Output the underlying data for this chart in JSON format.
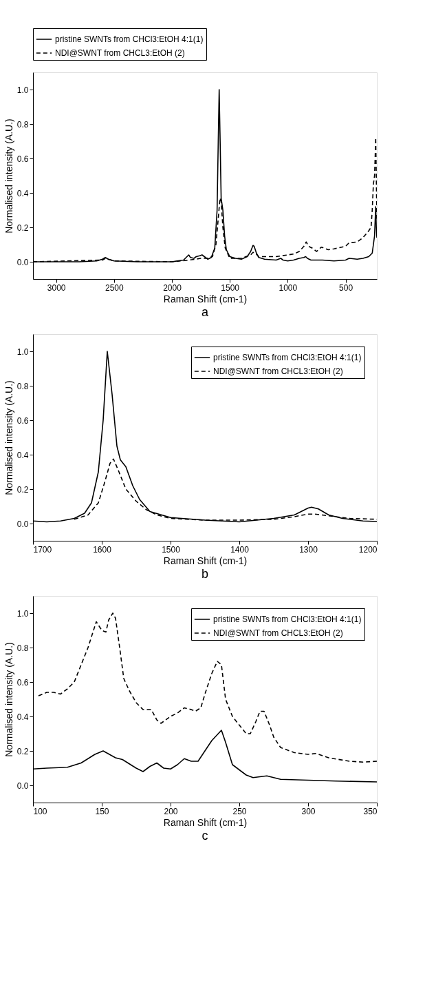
{
  "chart_data": [
    {
      "type": "line",
      "xlabel": "Raman Shift (cm-1)",
      "ylabel": "Normalised intensity (A.U.)",
      "annotations": [
        "a"
      ],
      "legend": "top",
      "grid": false,
      "xlim": [
        3200,
        230
      ],
      "xticks": [
        3000,
        2500,
        2000,
        1500,
        1000,
        500
      ],
      "ylim": [
        -0.1,
        1.1
      ],
      "yticks": [
        {
          "value": 0,
          "label": "0.0"
        },
        {
          "value": 0.2,
          "label": "0.2"
        },
        {
          "value": 0.4,
          "label": "0.4"
        },
        {
          "value": 0.6,
          "label": "0.6"
        },
        {
          "value": 0.8,
          "label": "0.8"
        },
        {
          "value": 1,
          "label": "1.0"
        }
      ],
      "series": [
        {
          "name": "pristine SWNTs from CHCl3:EtOH 4:1(1)",
          "color": "#000000",
          "line_style": "solid",
          "x": [
            3200,
            3000,
            2800,
            2650,
            2600,
            2575,
            2550,
            2500,
            2300,
            2000,
            1900,
            1870,
            1855,
            1840,
            1810,
            1790,
            1760,
            1740,
            1720,
            1690,
            1660,
            1630,
            1610,
            1600,
            1592,
            1585,
            1575,
            1560,
            1545,
            1530,
            1500,
            1450,
            1400,
            1350,
            1320,
            1300,
            1290,
            1270,
            1250,
            1200,
            1100,
            1060,
            1040,
            1000,
            950,
            900,
            860,
            845,
            830,
            800,
            700,
            600,
            500,
            470,
            400,
            350,
            300,
            270,
            250,
            240,
            235,
            230
          ],
          "values": [
            0.0,
            0.0,
            0.0,
            0.005,
            0.015,
            0.025,
            0.015,
            0.005,
            0.0,
            0.0,
            0.01,
            0.03,
            0.04,
            0.025,
            0.02,
            0.03,
            0.035,
            0.04,
            0.03,
            0.015,
            0.025,
            0.08,
            0.3,
            0.7,
            1.0,
            0.75,
            0.37,
            0.3,
            0.15,
            0.07,
            0.03,
            0.02,
            0.015,
            0.03,
            0.06,
            0.095,
            0.09,
            0.05,
            0.025,
            0.015,
            0.01,
            0.02,
            0.01,
            0.005,
            0.01,
            0.02,
            0.025,
            0.03,
            0.02,
            0.01,
            0.01,
            0.005,
            0.01,
            0.02,
            0.015,
            0.02,
            0.03,
            0.05,
            0.15,
            0.32,
            0.2,
            0.14
          ]
        },
        {
          "name": "NDI@SWNT from CHCL3:EtOH (2)",
          "color": "#000000",
          "line_style": "dashed",
          "x": [
            3200,
            2600,
            2575,
            2500,
            2000,
            1850,
            1750,
            1700,
            1650,
            1620,
            1600,
            1585,
            1575,
            1560,
            1540,
            1500,
            1400,
            1320,
            1300,
            1280,
            1250,
            1100,
            1000,
            950,
            900,
            860,
            840,
            820,
            790,
            750,
            710,
            690,
            650,
            600,
            500,
            470,
            400,
            350,
            300,
            280,
            270,
            260,
            250,
            245,
            240,
            235,
            232,
            230
          ],
          "values": [
            0.0,
            0.01,
            0.02,
            0.005,
            0.0,
            0.01,
            0.02,
            0.02,
            0.03,
            0.1,
            0.25,
            0.37,
            0.35,
            0.2,
            0.08,
            0.02,
            0.02,
            0.04,
            0.055,
            0.05,
            0.03,
            0.03,
            0.04,
            0.045,
            0.06,
            0.09,
            0.115,
            0.09,
            0.08,
            0.06,
            0.085,
            0.08,
            0.07,
            0.075,
            0.09,
            0.11,
            0.115,
            0.14,
            0.18,
            0.2,
            0.3,
            0.45,
            0.5,
            0.6,
            0.72,
            0.5,
            0.35,
            0.25
          ]
        }
      ]
    },
    {
      "type": "line",
      "xlabel": "Raman Shift (cm-1)",
      "ylabel": "Normalised intensity (A.U.)",
      "annotations": [
        "b"
      ],
      "legend": "top right",
      "grid": false,
      "xlim": [
        1700,
        1200
      ],
      "xticks": [
        1700,
        1600,
        1500,
        1400,
        1300,
        1200
      ],
      "ylim": [
        -0.1,
        1.1
      ],
      "yticks": [
        {
          "value": 0,
          "label": "0.0"
        },
        {
          "value": 0.2,
          "label": "0.2"
        },
        {
          "value": 0.4,
          "label": "0.4"
        },
        {
          "value": 0.6,
          "label": "0.6"
        },
        {
          "value": 0.8,
          "label": "0.8"
        },
        {
          "value": 1,
          "label": "1.0"
        }
      ],
      "series": [
        {
          "name": "pristine SWNTs from CHCl3:EtOH 4:1(1)",
          "color": "#000000",
          "line_style": "solid",
          "x": [
            1700,
            1680,
            1660,
            1640,
            1625,
            1615,
            1605,
            1598,
            1592,
            1585,
            1578,
            1573,
            1565,
            1555,
            1545,
            1530,
            1500,
            1450,
            1400,
            1350,
            1320,
            1310,
            1300,
            1295,
            1285,
            1270,
            1250,
            1220,
            1200
          ],
          "values": [
            0.015,
            0.01,
            0.015,
            0.03,
            0.06,
            0.12,
            0.3,
            0.6,
            1.0,
            0.75,
            0.45,
            0.37,
            0.33,
            0.22,
            0.14,
            0.07,
            0.035,
            0.02,
            0.01,
            0.03,
            0.05,
            0.07,
            0.09,
            0.095,
            0.085,
            0.05,
            0.03,
            0.015,
            0.012
          ]
        },
        {
          "name": "NDI@SWNT from CHCL3:EtOH (2)",
          "color": "#000000",
          "line_style": "dashed",
          "x": [
            1640,
            1620,
            1605,
            1595,
            1588,
            1583,
            1575,
            1565,
            1550,
            1535,
            1520,
            1500,
            1450,
            1400,
            1350,
            1320,
            1300,
            1290,
            1270,
            1240,
            1200
          ],
          "values": [
            0.025,
            0.05,
            0.12,
            0.25,
            0.35,
            0.375,
            0.3,
            0.2,
            0.13,
            0.08,
            0.05,
            0.03,
            0.02,
            0.02,
            0.025,
            0.04,
            0.055,
            0.055,
            0.045,
            0.03,
            0.025
          ]
        }
      ]
    },
    {
      "type": "line",
      "xlabel": "Raman Shift (cm-1)",
      "ylabel": "Normalised intensity (A.U.)",
      "annotations": [
        "c"
      ],
      "legend": "top right",
      "grid": false,
      "xlim": [
        100,
        350
      ],
      "xticks": [
        100,
        150,
        200,
        250,
        300,
        350
      ],
      "ylim": [
        -0.1,
        1.1
      ],
      "yticks": [
        {
          "value": 0,
          "label": "0.0"
        },
        {
          "value": 0.2,
          "label": "0.2"
        },
        {
          "value": 0.4,
          "label": "0.4"
        },
        {
          "value": 0.6,
          "label": "0.6"
        },
        {
          "value": 0.8,
          "label": "0.8"
        },
        {
          "value": 1,
          "label": "1.0"
        }
      ],
      "series": [
        {
          "name": "pristine SWNTs from CHCl3:EtOH 4:1(1)",
          "color": "#000000",
          "line_style": "solid",
          "x": [
            100,
            110,
            125,
            135,
            145,
            151,
            160,
            165,
            175,
            180,
            185,
            190,
            195,
            200,
            205,
            210,
            215,
            220,
            225,
            230,
            237,
            240,
            245,
            250,
            255,
            260,
            270,
            280,
            300,
            320,
            350
          ],
          "values": [
            0.095,
            0.1,
            0.105,
            0.13,
            0.18,
            0.2,
            0.16,
            0.15,
            0.1,
            0.08,
            0.11,
            0.13,
            0.1,
            0.095,
            0.12,
            0.155,
            0.14,
            0.14,
            0.2,
            0.26,
            0.32,
            0.25,
            0.12,
            0.09,
            0.06,
            0.045,
            0.055,
            0.035,
            0.03,
            0.025,
            0.02
          ]
        },
        {
          "name": "NDI@SWNT from CHCL3:EtOH (2)",
          "color": "#000000",
          "line_style": "dashed",
          "x": [
            104,
            110,
            115,
            120,
            125,
            130,
            140,
            146,
            150,
            153,
            155,
            158,
            160,
            163,
            166,
            170,
            175,
            180,
            186,
            190,
            193,
            200,
            205,
            210,
            215,
            218,
            222,
            225,
            230,
            234,
            237,
            240,
            245,
            250,
            255,
            258,
            262,
            265,
            268,
            272,
            275,
            280,
            290,
            300,
            306,
            315,
            330,
            340,
            350
          ],
          "values": [
            0.52,
            0.54,
            0.54,
            0.53,
            0.56,
            0.6,
            0.8,
            0.95,
            0.9,
            0.89,
            0.96,
            1.0,
            0.97,
            0.8,
            0.62,
            0.55,
            0.48,
            0.44,
            0.44,
            0.38,
            0.36,
            0.4,
            0.42,
            0.45,
            0.44,
            0.43,
            0.45,
            0.53,
            0.65,
            0.72,
            0.7,
            0.5,
            0.4,
            0.35,
            0.3,
            0.3,
            0.37,
            0.43,
            0.43,
            0.35,
            0.28,
            0.22,
            0.19,
            0.18,
            0.185,
            0.16,
            0.14,
            0.135,
            0.14
          ]
        }
      ]
    }
  ]
}
